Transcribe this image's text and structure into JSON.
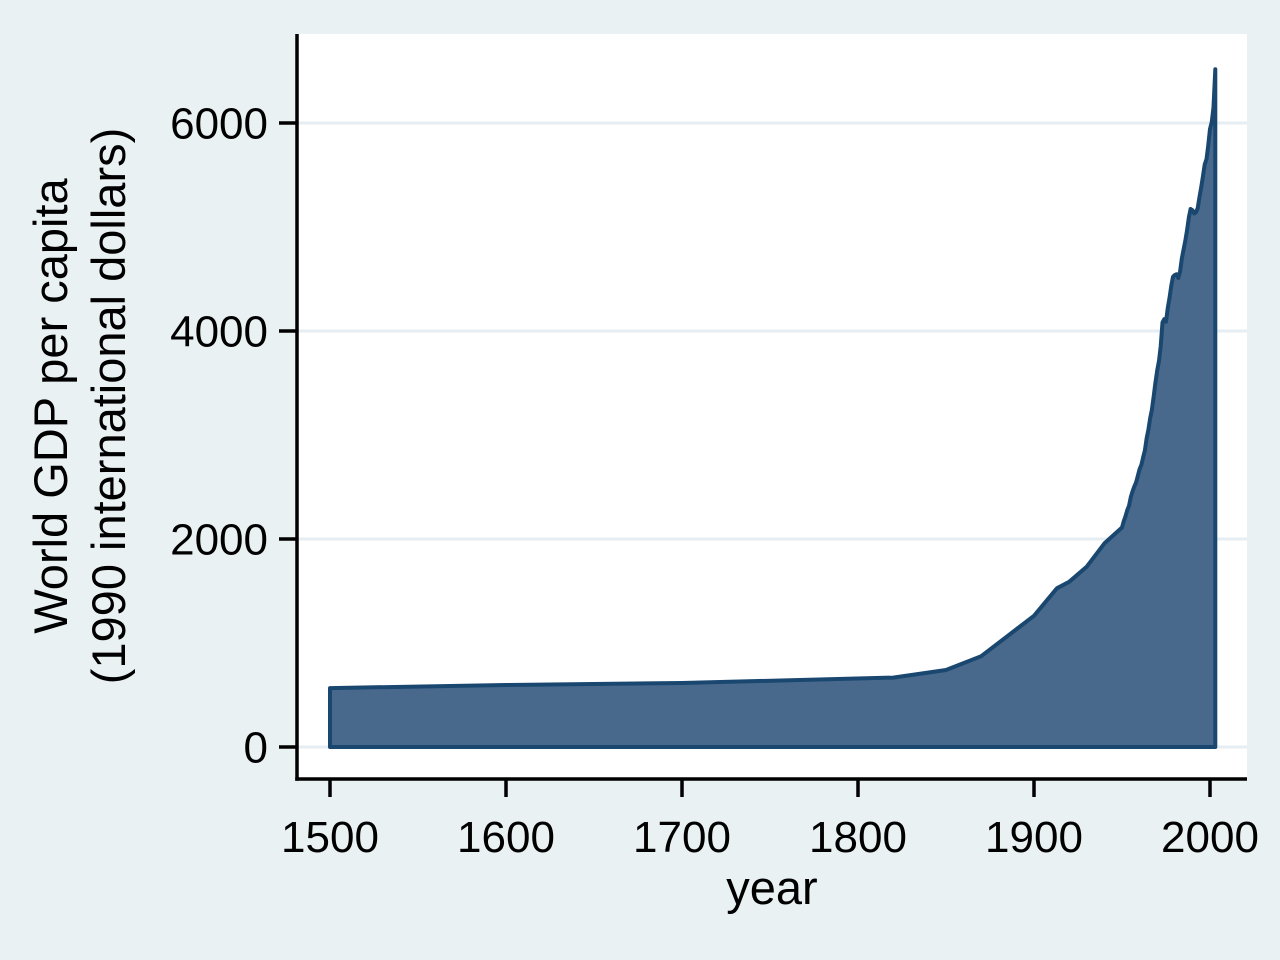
{
  "colors": {
    "background": "#EAF1F3",
    "plot_background": "#FFFFFF",
    "gridline": "#E6EEF3",
    "axis": "#000000",
    "text": "#000000",
    "area_fill": "#48698C",
    "area_stroke": "#1A476F"
  },
  "chart_data": {
    "type": "area",
    "title": "",
    "xlabel": "year",
    "ylabel_lines": [
      "World GDP per capita",
      "(1990 international dollars)"
    ],
    "x_ticks": [
      1500,
      1600,
      1700,
      1800,
      1900,
      2000
    ],
    "y_ticks": [
      0,
      2000,
      4000,
      6000
    ],
    "xlim": [
      1500,
      2003
    ],
    "ylim": [
      0,
      6516
    ],
    "grid": "horizontal",
    "legend": "none",
    "points": [
      [
        1500,
        566
      ],
      [
        1600,
        596
      ],
      [
        1700,
        615
      ],
      [
        1820,
        667
      ],
      [
        1850,
        740
      ],
      [
        1870,
        873
      ],
      [
        1900,
        1262
      ],
      [
        1913,
        1526
      ],
      [
        1920,
        1588
      ],
      [
        1930,
        1735
      ],
      [
        1940,
        1958
      ],
      [
        1950,
        2111
      ],
      [
        1951,
        2172
      ],
      [
        1952,
        2218
      ],
      [
        1953,
        2279
      ],
      [
        1954,
        2318
      ],
      [
        1955,
        2403
      ],
      [
        1956,
        2460
      ],
      [
        1957,
        2505
      ],
      [
        1958,
        2544
      ],
      [
        1959,
        2606
      ],
      [
        1960,
        2672
      ],
      [
        1961,
        2713
      ],
      [
        1962,
        2784
      ],
      [
        1963,
        2852
      ],
      [
        1964,
        2966
      ],
      [
        1965,
        3052
      ],
      [
        1966,
        3163
      ],
      [
        1967,
        3243
      ],
      [
        1968,
        3372
      ],
      [
        1969,
        3502
      ],
      [
        1970,
        3620
      ],
      [
        1971,
        3713
      ],
      [
        1972,
        3853
      ],
      [
        1973,
        4083
      ],
      [
        1974,
        4113
      ],
      [
        1975,
        4089
      ],
      [
        1976,
        4223
      ],
      [
        1977,
        4317
      ],
      [
        1978,
        4437
      ],
      [
        1979,
        4521
      ],
      [
        1980,
        4538
      ],
      [
        1981,
        4545
      ],
      [
        1982,
        4510
      ],
      [
        1983,
        4572
      ],
      [
        1984,
        4696
      ],
      [
        1985,
        4785
      ],
      [
        1986,
        4873
      ],
      [
        1987,
        4971
      ],
      [
        1988,
        5094
      ],
      [
        1989,
        5173
      ],
      [
        1990,
        5162
      ],
      [
        1991,
        5131
      ],
      [
        1992,
        5141
      ],
      [
        1993,
        5181
      ],
      [
        1994,
        5283
      ],
      [
        1995,
        5381
      ],
      [
        1996,
        5491
      ],
      [
        1997,
        5601
      ],
      [
        1998,
        5652
      ],
      [
        1999,
        5782
      ],
      [
        2000,
        5942
      ],
      [
        2001,
        6012
      ],
      [
        2002,
        6152
      ],
      [
        2003,
        6516
      ]
    ]
  }
}
